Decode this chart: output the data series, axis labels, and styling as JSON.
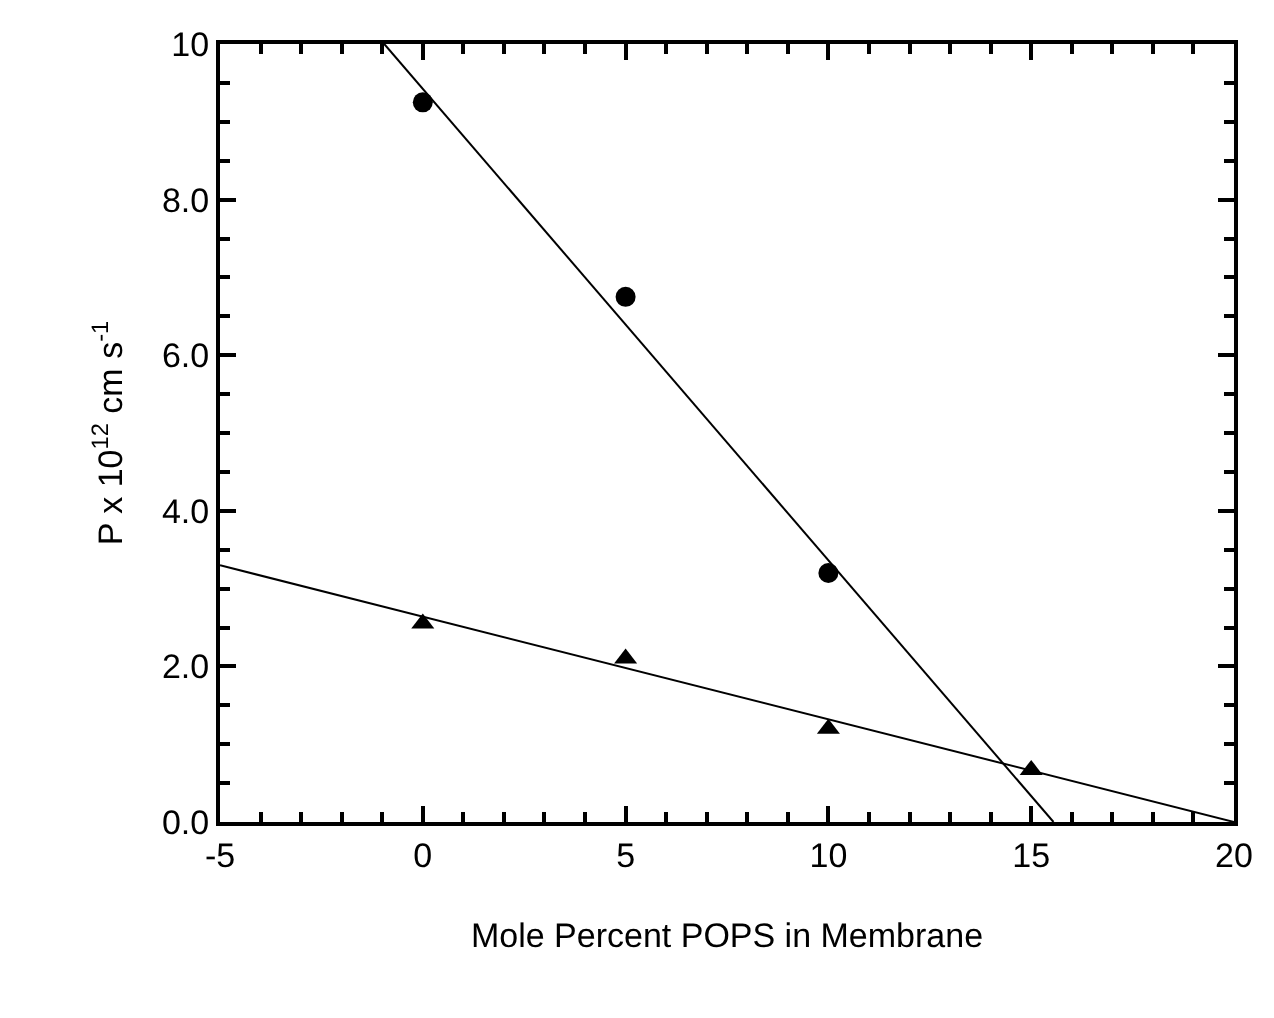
{
  "chart_data": {
    "type": "scatter",
    "xlabel": "Mole Percent POPS in Membrane",
    "ylabel": "P x 10$^{12}$ cm s$^{-1}$",
    "xlim": [
      -5,
      20
    ],
    "xticks": [
      -5,
      0,
      5,
      10,
      15,
      20
    ],
    "ylim": [
      0,
      10
    ],
    "yticks": [
      {
        "value": 0,
        "label": "0.0"
      },
      {
        "value": 2,
        "label": "2.0"
      },
      {
        "value": 4,
        "label": "4.0"
      },
      {
        "value": 6,
        "label": "6.0"
      },
      {
        "value": 8,
        "label": "8.0"
      },
      10
    ],
    "grid": false,
    "series": [
      {
        "marker": "circle",
        "color": "#000000",
        "x": [
          0,
          5,
          10
        ],
        "values": [
          9.25,
          6.75,
          3.2
        ]
      },
      {
        "marker": "triangle",
        "color": "#000000",
        "x": [
          0,
          5,
          10,
          15
        ],
        "values": [
          2.55,
          2.1,
          1.2,
          0.67
        ]
      },
      {
        "type": "line",
        "marker": "none",
        "color": "#000000",
        "x": [
          -0.95,
          15.55
        ],
        "values": [
          10,
          0
        ]
      },
      {
        "type": "line",
        "marker": "none",
        "color": "#000000",
        "x": [
          -5,
          20
        ],
        "values": [
          3.3,
          0
        ]
      }
    ]
  }
}
